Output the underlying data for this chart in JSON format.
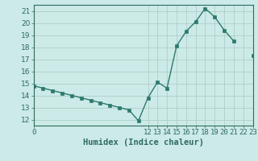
{
  "xlabel": "Humidex (Indice chaleur)",
  "x_values": [
    0,
    1,
    2,
    3,
    4,
    5,
    6,
    7,
    8,
    9,
    10,
    11,
    12,
    13,
    14,
    15,
    16,
    17,
    18,
    19,
    20,
    21,
    22,
    23
  ],
  "y_values": [
    14.8,
    14.6,
    14.4,
    14.2,
    14.0,
    13.8,
    13.6,
    13.4,
    13.2,
    13.0,
    12.8,
    11.9,
    13.8,
    15.1,
    14.6,
    18.1,
    19.3,
    20.1,
    21.2,
    20.5,
    19.4,
    18.5,
    null,
    17.3
  ],
  "line_color": "#2d7a6e",
  "marker": "s",
  "marker_size": 2.5,
  "bg_color": "#cceae7",
  "grid_color": "#b0cec9",
  "ylim": [
    11.5,
    21.5
  ],
  "yticks": [
    12,
    13,
    14,
    15,
    16,
    17,
    18,
    19,
    20,
    21
  ],
  "xlim": [
    0,
    23
  ],
  "xticks": [
    0,
    12,
    13,
    14,
    15,
    16,
    17,
    18,
    19,
    20,
    21,
    22,
    23
  ],
  "tick_label_fontsize": 6.5,
  "xlabel_fontsize": 7.5,
  "label_color": "#2d6b62",
  "spine_color": "#2d6b62",
  "linewidth": 1.0
}
